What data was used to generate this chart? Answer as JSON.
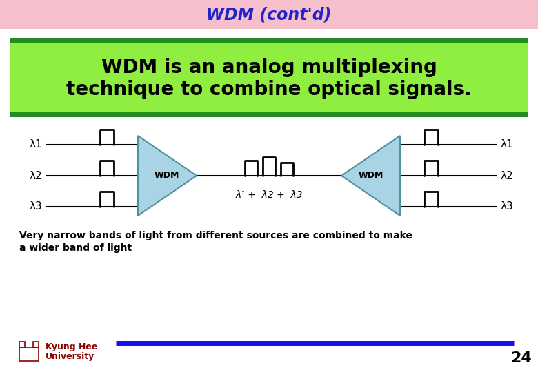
{
  "title": "WDM (cont'd)",
  "title_color": "#2222CC",
  "title_bg": "#F5C0CC",
  "subtitle_line1": "WDM is an analog multiplexing",
  "subtitle_line2": "technique to combine optical signals.",
  "subtitle_bg": "#90EE40",
  "subtitle_border": "#228B22",
  "subtitle_color": "#000000",
  "body_bg": "#FFFFFF",
  "lambda_labels_left": [
    "λ1",
    "λ2",
    "λ3"
  ],
  "lambda_labels_right": [
    "λ1",
    "λ2",
    "λ3"
  ],
  "wdm_label": "WDM",
  "combined_label": "λ¹ +  λ2 +  λ3",
  "bottom_text_line1": "Very narrow bands of light from different sources are combined to make",
  "bottom_text_line2": "a wider band of light",
  "university_name1": "Kyung Hee",
  "university_name2": "University",
  "page_number": "24",
  "prism_color": "#A8D4E6",
  "prism_edge_color": "#5090A0",
  "line_color": "#000000",
  "bottom_line_color": "#1010EE",
  "uni_text_color": "#8B0000"
}
